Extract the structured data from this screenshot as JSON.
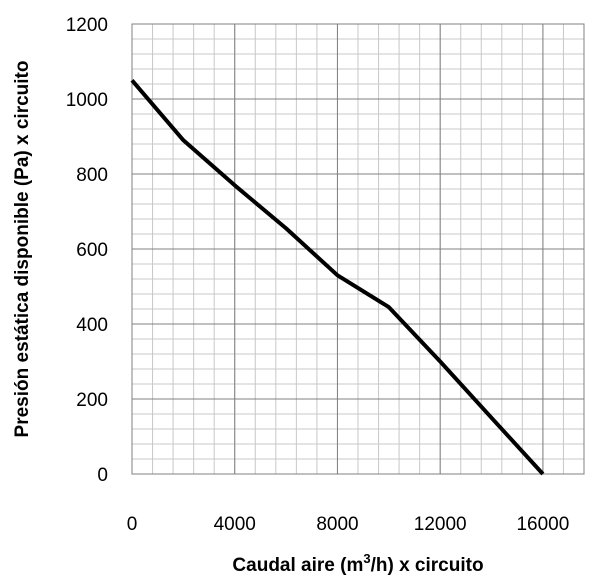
{
  "chart_data": {
    "type": "line",
    "title": "",
    "xlabel": "Caudal aire (m",
    "xlabel_sup": "3",
    "xlabel_rest": "/h) x circuito",
    "ylabel": "Presión estática disponible (Pa) x circuito",
    "xlim": [
      0,
      17600
    ],
    "ylim": [
      0,
      1200
    ],
    "x_ticks": [
      0,
      4000,
      8000,
      12000,
      16000
    ],
    "x_tick_labels": [
      "0",
      "4000",
      "8000",
      "12000",
      "16000"
    ],
    "y_ticks": [
      0,
      200,
      400,
      600,
      800,
      1000,
      1200
    ],
    "y_tick_labels": [
      "0",
      "200",
      "400",
      "600",
      "800",
      "1000",
      "1200"
    ],
    "grid": true,
    "series": [
      {
        "x": [
          0,
          2000,
          4000,
          6000,
          8000,
          10000,
          12000,
          14000,
          16000
        ],
        "y": [
          1050,
          890,
          770,
          655,
          530,
          445,
          300,
          150,
          0
        ],
        "color": "#000000"
      }
    ]
  }
}
